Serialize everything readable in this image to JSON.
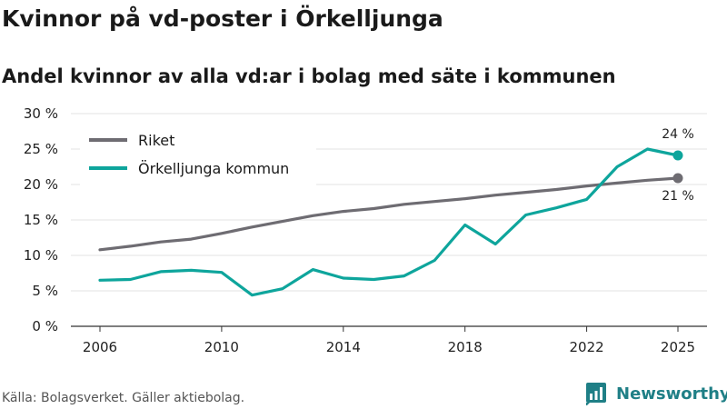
{
  "page": {
    "title": "Kvinnor på vd-poster i Örkelljunga",
    "subtitle": "Andel kvinnor av alla vd:ar i bolag med säte i kommunen",
    "source": "Källa: Bolagsverket. Gäller aktiebolag.",
    "brand": "Newsworthy",
    "brand_icon": "bar-chart-icon"
  },
  "chart_data": {
    "type": "line",
    "title": "Kvinnor på vd-poster i Örkelljunga",
    "subtitle": "Andel kvinnor av alla vd:ar i bolag med säte i kommunen",
    "xlabel": "",
    "ylabel": "",
    "ylim": [
      0,
      30
    ],
    "xlim": [
      2006,
      2025
    ],
    "y_ticks": [
      0,
      5,
      10,
      15,
      20,
      25,
      30
    ],
    "y_tick_labels": [
      "0 %",
      "5 %",
      "10 %",
      "15 %",
      "20 %",
      "25 %",
      "30 %"
    ],
    "x_ticks": [
      2006,
      2010,
      2014,
      2018,
      2022,
      2025
    ],
    "x_tick_labels": [
      "2006",
      "2010",
      "2014",
      "2018",
      "2022",
      "2025"
    ],
    "grid": true,
    "legend_position": "top-left",
    "x": [
      2006,
      2007,
      2008,
      2009,
      2010,
      2011,
      2012,
      2013,
      2014,
      2015,
      2016,
      2017,
      2018,
      2019,
      2020,
      2021,
      2022,
      2023,
      2024,
      2025
    ],
    "series": [
      {
        "name": "Riket",
        "color": "#6e6c72",
        "values": [
          10.8,
          11.3,
          11.9,
          12.3,
          13.1,
          14.0,
          14.8,
          15.6,
          16.2,
          16.6,
          17.2,
          17.6,
          18.0,
          18.5,
          18.9,
          19.3,
          19.8,
          20.2,
          20.6,
          20.9
        ],
        "end_label": "21 %",
        "end_label_position": "below"
      },
      {
        "name": "Örkelljunga kommun",
        "color": "#0ea59c",
        "values": [
          6.5,
          6.6,
          7.7,
          7.9,
          7.6,
          4.4,
          5.3,
          8.0,
          6.8,
          6.6,
          7.1,
          9.3,
          14.3,
          11.6,
          15.7,
          16.7,
          17.9,
          22.5,
          25.0,
          24.1
        ],
        "end_label": "24 %",
        "end_label_position": "above"
      }
    ]
  }
}
